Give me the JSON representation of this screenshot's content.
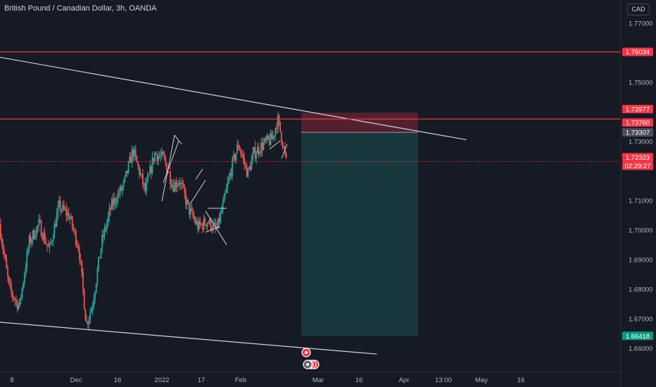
{
  "header": {
    "title": "British Pound / Canadian Dollar, 3h, OANDA",
    "currency": "CAD"
  },
  "colors": {
    "background": "#161a25",
    "up": "#26a69a",
    "down": "#ef5350",
    "level": "#f23645",
    "trend": "#d1d4dc",
    "axis_text": "#b2b5be",
    "profit_zone": "#26a69a",
    "loss_zone": "#f23645",
    "price_badge": "#4a4e59",
    "current_price": "#f23645",
    "target_badge": "#089981"
  },
  "chart_data": {
    "type": "candlestick",
    "title": "British Pound / Canadian Dollar, 3h, OANDA",
    "ylim": [
      1.654,
      1.776
    ],
    "grid": false,
    "y_ticks": [
      "1.77000",
      "1.75000",
      "1.73000",
      "1.71000",
      "1.70000",
      "1.69000",
      "1.68000",
      "1.67000",
      "1.66000"
    ],
    "y_tick_values": [
      1.77,
      1.75,
      1.73,
      1.71,
      1.7,
      1.69,
      1.68,
      1.67,
      1.66
    ],
    "x_ticks": [
      "8",
      "Dec",
      "16",
      "2022",
      "17",
      "Feb",
      "Mar",
      "16",
      "Apr",
      "13:00",
      "May",
      "16"
    ],
    "horizontal_levels": [
      1.76034,
      1.7376
    ],
    "price_labels": [
      {
        "text": "1.76034",
        "value": 1.76034,
        "kind": "level"
      },
      {
        "text": "1.73977",
        "value": 1.73977,
        "kind": "stop"
      },
      {
        "text": "1.73760",
        "value": 1.7376,
        "kind": "level"
      },
      {
        "text": "1.73307",
        "value": 1.73307,
        "kind": "entry"
      },
      {
        "text": "1.72323",
        "value": 1.72323,
        "kind": "current"
      },
      {
        "text": "02:29:27",
        "value": 1.72323,
        "kind": "countdown"
      },
      {
        "text": "1.66418",
        "value": 1.66418,
        "kind": "target"
      }
    ],
    "position": {
      "entry": 1.73307,
      "stop": 1.73977,
      "target": 1.66418
    },
    "current_price": 1.72323,
    "trendlines": [
      {
        "from": [
          0.0,
          1.7585
        ],
        "to": [
          0.751,
          1.7306
        ]
      },
      {
        "from": [
          0.0,
          1.6688
        ],
        "to": [
          0.607,
          1.658
        ]
      }
    ],
    "price_anchors": [
      [
        0.0,
        1.702
      ],
      [
        0.016,
        1.68
      ],
      [
        0.032,
        1.674
      ],
      [
        0.048,
        1.696
      ],
      [
        0.064,
        1.702
      ],
      [
        0.08,
        1.693
      ],
      [
        0.096,
        1.708
      ],
      [
        0.112,
        1.705
      ],
      [
        0.128,
        1.694
      ],
      [
        0.14,
        1.668
      ],
      [
        0.15,
        1.675
      ],
      [
        0.165,
        1.696
      ],
      [
        0.18,
        1.708
      ],
      [
        0.2,
        1.715
      ],
      [
        0.215,
        1.727
      ],
      [
        0.235,
        1.713
      ],
      [
        0.25,
        1.726
      ],
      [
        0.265,
        1.724
      ],
      [
        0.28,
        1.715
      ],
      [
        0.29,
        1.717
      ],
      [
        0.305,
        1.707
      ],
      [
        0.32,
        1.701
      ],
      [
        0.335,
        1.703
      ],
      [
        0.35,
        1.7
      ],
      [
        0.36,
        1.708
      ],
      [
        0.375,
        1.722
      ],
      [
        0.385,
        1.729
      ],
      [
        0.4,
        1.719
      ],
      [
        0.41,
        1.726
      ],
      [
        0.425,
        1.729
      ],
      [
        0.44,
        1.731
      ],
      [
        0.448,
        1.7375
      ],
      [
        0.455,
        1.731
      ],
      [
        0.462,
        1.723
      ]
    ],
    "candle_count": 240,
    "annotations": [
      "news-marker",
      "economic-events-group"
    ]
  }
}
